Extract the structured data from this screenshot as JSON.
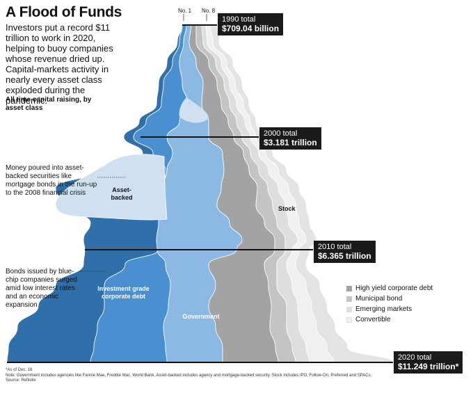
{
  "title": "A Flood of Funds",
  "subtitle": "Investors put a record $11 trillion to work in 2020, helping to buoy companies whose revenue dried up. Capital-markets activity in nearly every asset class exploded during the pandemic.",
  "chart_label": "All time capital raising, by asset class",
  "rank_labels": {
    "first": "No. 1",
    "eighth": "No. 8"
  },
  "totals": [
    {
      "year_label": "1990 total",
      "value_label": "$709.04 billion"
    },
    {
      "year_label": "2000 total",
      "value_label": "$3.181 trillion"
    },
    {
      "year_label": "2010 total",
      "value_label": "$6.365 trillion"
    },
    {
      "year_label": "2020 total",
      "value_label": "$11.249 trillion*"
    }
  ],
  "annotations": {
    "asset_backed": "Money poured into asset-backed securities like mortgage bonds in the run-up to the 2008 financial crisis",
    "corporate": "Bonds issued by blue-chip companies surged amid low interest rates and an economic expansion"
  },
  "series_labels": {
    "asset_backed": "Asset-backed",
    "investment_grade": "Investment grade corporate debt",
    "government": "Government",
    "stock": "Stock"
  },
  "legend": [
    {
      "label": "High yield corporate debt",
      "color": "#a3a3a3"
    },
    {
      "label": "Municipal bond",
      "color": "#c4c4c4"
    },
    {
      "label": "Emerging markets",
      "color": "#dedede"
    },
    {
      "label": "Convertible",
      "color": "#f0f0f0"
    }
  ],
  "notes": {
    "asof": "*As of Dec. 16",
    "note": "Note: Government includes agencies like Fannie Mae, Freddie Mac, World Bank. Asset-backed includes agency and mortgage-backed security. Stock includes IPO, Follow-On, Preferred and SPACs.",
    "source": "Source: Refinitiv"
  },
  "chart_data": {
    "type": "area",
    "title": "A Flood of Funds",
    "subtitle": "All time capital raising, by asset class",
    "orientation": "vertical-time-axis",
    "x": [
      "1990",
      "2000",
      "2010",
      "2020"
    ],
    "totals_usd_trillions": [
      0.70904,
      3.181,
      6.365,
      11.249
    ],
    "series": [
      {
        "name": "Investment grade corporate debt",
        "color": "#2f6faa"
      },
      {
        "name": "Asset-backed",
        "color": "#cfe1f1"
      },
      {
        "name": "Government",
        "color": "#4a90d0"
      },
      {
        "name": "Stock",
        "color": "#8cb9e3"
      },
      {
        "name": "High yield corporate debt",
        "color": "#a3a3a3"
      },
      {
        "name": "Municipal bond",
        "color": "#c4c4c4"
      },
      {
        "name": "Emerging markets",
        "color": "#dedede"
      },
      {
        "name": "Convertible",
        "color": "#f0f0f0"
      }
    ]
  }
}
